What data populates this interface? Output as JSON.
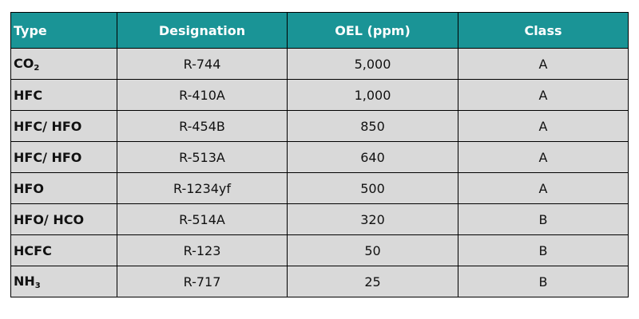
{
  "table": {
    "columns": {
      "type": "Type",
      "designation": "Designation",
      "oel": "OEL (ppm)",
      "class": "Class"
    },
    "rows": [
      {
        "type_main": "CO",
        "type_sub": "2",
        "designation": "R-744",
        "oel": "5,000",
        "class": "A"
      },
      {
        "type_main": "HFC",
        "type_sub": "",
        "designation": "R-410A",
        "oel": "1,000",
        "class": "A"
      },
      {
        "type_main": "HFC/ HFO",
        "type_sub": "",
        "designation": "R-454B",
        "oel": "850",
        "class": "A"
      },
      {
        "type_main": "HFC/ HFO",
        "type_sub": "",
        "designation": "R-513A",
        "oel": "640",
        "class": "A"
      },
      {
        "type_main": "HFO",
        "type_sub": "",
        "designation": "R-1234yf",
        "oel": "500",
        "class": "A"
      },
      {
        "type_main": "HFO/ HCO",
        "type_sub": "",
        "designation": "R-514A",
        "oel": "320",
        "class": "B"
      },
      {
        "type_main": "HCFC",
        "type_sub": "",
        "designation": "R-123",
        "oel": "50",
        "class": "B"
      },
      {
        "type_main": "NH",
        "type_sub": "3",
        "designation": "R-717",
        "oel": "25",
        "class": "B"
      }
    ]
  },
  "colors": {
    "header_bg": "#1a9496",
    "header_text": "#ffffff",
    "cell_bg": "#d9d9d9",
    "border": "#000000"
  }
}
